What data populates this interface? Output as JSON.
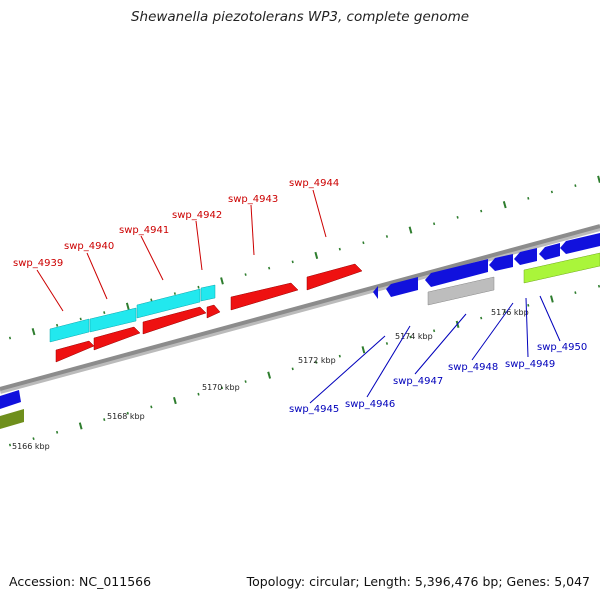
{
  "title": "Shewanella piezotolerans WP3, complete genome",
  "footer": {
    "accession": "Accession: NC_011566",
    "summary": "Topology: circular; Length: 5,396,476 bp; Genes: 5,047"
  },
  "colors": {
    "backbone": "#8c8c8c",
    "tick": "#2e7d2e",
    "top_label": "#cc0000",
    "bottom_label": "#0000bb",
    "cyan": "#22e8ee",
    "red": "#ee1111",
    "blue": "#1111dd",
    "grey": "#bdbdbd",
    "lime": "#aaf53a",
    "olive": "#6f8f1c"
  },
  "scale_labels": [
    "5166 kbp",
    "5168 kbp",
    "5170 kbp",
    "5172 kbp",
    "5174 kbp",
    "5176 kbp"
  ],
  "top_genes": [
    "swp_4939",
    "swp_4940",
    "swp_4941",
    "swp_4942",
    "swp_4943",
    "swp_4944"
  ],
  "bottom_genes": [
    "swp_4945",
    "swp_4946",
    "swp_4947",
    "swp_4948",
    "swp_4949",
    "swp_4950"
  ]
}
